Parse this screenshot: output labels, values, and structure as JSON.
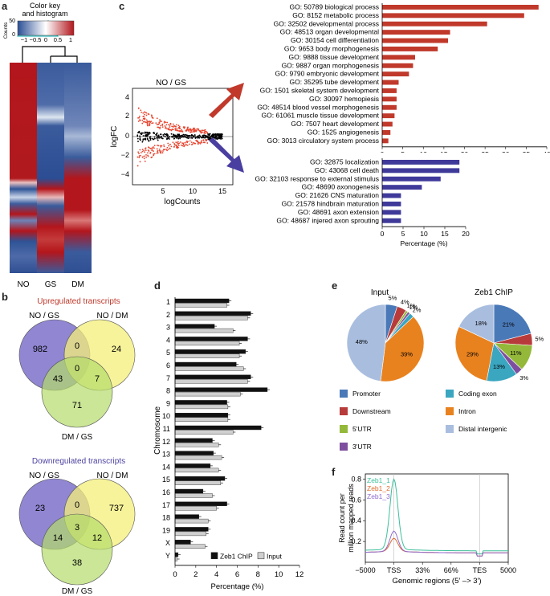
{
  "panel_labels": {
    "a": "a",
    "b": "b",
    "c": "c",
    "d": "d",
    "e": "e",
    "f": "f"
  },
  "heatmap": {
    "color_key_title": "Color key",
    "color_key_subtitle": "and histogram",
    "counts_label": "Counts",
    "counts_ticks": [
      "50",
      "0"
    ],
    "key_ticks": [
      "−1",
      "−0.5",
      "0",
      "0.5",
      "1"
    ],
    "columns": [
      "NO",
      "GS",
      "DM"
    ]
  },
  "venn_up": {
    "title": "Upregulated transcripts",
    "title_color": "#c0392b",
    "set_labels": [
      "NO / GS",
      "NO / DM",
      "DM / GS"
    ],
    "values": {
      "a_only": "982",
      "b_only": "24",
      "c_only": "71",
      "ab": "0",
      "ac": "43",
      "bc": "7",
      "abc": "0"
    }
  },
  "venn_down": {
    "title": "Downregulated transcripts",
    "title_color": "#4a3fa0",
    "set_labels": [
      "NO / GS",
      "NO / DM",
      "DM / GS"
    ],
    "values": {
      "a_only": "23",
      "b_only": "737",
      "c_only": "38",
      "ab": "0",
      "ac": "14",
      "bc": "12",
      "abc": "3"
    }
  },
  "ma_plot": {
    "title": "NO / GS",
    "xlabel": "logCounts",
    "ylabel": "logFC",
    "xticks": [
      "5",
      "10",
      "15"
    ],
    "yticks": [
      "4",
      "2",
      "0",
      "−2",
      "−4"
    ]
  },
  "chart_data": [
    {
      "type": "bar",
      "orientation": "horizontal",
      "id": "go_up",
      "color": "#c0392b",
      "categories": [
        "GO: 50789 biological process",
        "GO: 8152 metabolic process",
        "GO: 32502 developmental process",
        "GO: 48513 organ developmental",
        "GO: 30154 cell differentiation",
        "GO: 9653 body morphogenesis",
        "GO: 9888 tissue development",
        "GO: 9887 organ morphogenesis",
        "GO: 9790 embryonic development",
        "GO: 35295 tube development",
        "GO: 1501 skeletal system development",
        "GO: 30097 hemopiesis",
        "GO: 48514 blood vessel morphogenesis",
        "GO: 61061 muscle tissue development",
        "GO: 7507 heart development",
        "GO: 1525 angiogenesis",
        "GO: 3013 circulatory system process"
      ],
      "values": [
        38,
        34.5,
        25.5,
        16.5,
        16,
        13.5,
        8,
        7.5,
        6.5,
        4,
        3.5,
        3.5,
        3.5,
        3,
        2.5,
        2,
        1.5
      ],
      "xlabel": "Percentage (%)",
      "xlim": [
        0,
        40
      ],
      "xticks": [
        "0",
        "5",
        "10",
        "15",
        "20",
        "25",
        "30",
        "35",
        "40"
      ]
    },
    {
      "type": "bar",
      "orientation": "horizontal",
      "id": "go_down",
      "color": "#3f3a9a",
      "categories": [
        "GO: 32875 localization",
        "GO: 43068 cell death",
        "GO: 32103 response to external stimulus",
        "GO: 48690 axonogenesis",
        "GO: 21626 CNS maturation",
        "GO: 21578 hindbrain maturation",
        "GO: 48691 axon extension",
        "GO: 48687 injered axon sprouting"
      ],
      "values": [
        18.5,
        18.5,
        14,
        9.5,
        4.5,
        4.5,
        4.5,
        4.5
      ],
      "xlabel": "Percentage (%)",
      "xlim": [
        0,
        20
      ],
      "xticks": [
        "0",
        "5",
        "10",
        "15",
        "20"
      ]
    },
    {
      "type": "bar",
      "orientation": "horizontal",
      "id": "chromosome",
      "categories": [
        "1",
        "2",
        "3",
        "4",
        "5",
        "6",
        "7",
        "8",
        "9",
        "10",
        "11",
        "12",
        "13",
        "14",
        "15",
        "16",
        "17",
        "18",
        "19",
        "X",
        "Y"
      ],
      "series": [
        {
          "name": "Zeb1 ChIP",
          "color": "#111111",
          "values": [
            5.2,
            7.3,
            3.8,
            7.0,
            6.8,
            5.9,
            7.3,
            8.9,
            5.0,
            5.1,
            8.3,
            3.6,
            3.7,
            3.4,
            4.8,
            2.7,
            5.0,
            2.3,
            3.2,
            1.5,
            0.3
          ]
        },
        {
          "name": "Input",
          "color": "#d0d0d0",
          "values": [
            5.0,
            7.0,
            5.6,
            6.2,
            6.2,
            6.6,
            7.0,
            6.3,
            5.1,
            5.1,
            5.6,
            4.2,
            4.5,
            4.2,
            4.4,
            3.6,
            4.0,
            3.2,
            3.0,
            2.9,
            0.2
          ]
        }
      ],
      "ylabel": "Chromosome",
      "xlabel": "Percentage (%)",
      "xlim": [
        0,
        12
      ],
      "xticks": [
        "0",
        "2",
        "4",
        "6",
        "8",
        "10",
        "12"
      ]
    },
    {
      "type": "pie",
      "id": "pie_input",
      "title": "Input",
      "slices": [
        {
          "name": "Promoter",
          "value": 5,
          "color": "#4a79b8",
          "label": "5%"
        },
        {
          "name": "Downstream",
          "value": 4,
          "color": "#b83b3b",
          "label": "4%"
        },
        {
          "name": "5'UTR",
          "value": 1,
          "color": "#94b83a",
          "label": "1%"
        },
        {
          "name": "3'UTR",
          "value": 1,
          "color": "#7d4f9e",
          "label": "1%"
        },
        {
          "name": "Coding exon",
          "value": 2,
          "color": "#3aa6c0",
          "label": "2%"
        },
        {
          "name": "Intron",
          "value": 39,
          "color": "#e8821f",
          "label": "39%"
        },
        {
          "name": "Distal intergenic",
          "value": 48,
          "color": "#a9bedf",
          "label": "48%"
        }
      ]
    },
    {
      "type": "pie",
      "id": "pie_zeb1",
      "title": "Zeb1 ChIP",
      "slices": [
        {
          "name": "Promoter",
          "value": 21,
          "color": "#4a79b8",
          "label": "21%"
        },
        {
          "name": "Downstream",
          "value": 5,
          "color": "#b83b3b",
          "label": "5%"
        },
        {
          "name": "5'UTR",
          "value": 11,
          "color": "#94b83a",
          "label": "11%"
        },
        {
          "name": "3'UTR",
          "value": 3,
          "color": "#7d4f9e",
          "label": "3%"
        },
        {
          "name": "Coding exon",
          "value": 13,
          "color": "#3aa6c0",
          "label": "13%"
        },
        {
          "name": "Intron",
          "value": 29,
          "color": "#e8821f",
          "label": "29%"
        },
        {
          "name": "Distal intergenic",
          "value": 18,
          "color": "#a9bedf",
          "label": "18%"
        }
      ]
    },
    {
      "type": "line",
      "id": "profile",
      "ylabel": "Read count per million mapped reads",
      "xlabel": "Genomic regions (5′ –> 3′)",
      "xticks": [
        "−5000",
        "TSS",
        "33%",
        "66%",
        "TES",
        "5000"
      ],
      "yticks": [
        "0.2",
        "0.4",
        "0.6",
        "0.8"
      ],
      "ylim": [
        0,
        0.85
      ],
      "series": [
        {
          "name": "Zeb1_1",
          "color": "#3cbf9a",
          "peak": 0.78,
          "base": 0.11
        },
        {
          "name": "Zeb1_2",
          "color": "#e06a2c",
          "peak": 0.21,
          "base": 0.09
        },
        {
          "name": "Zeb1_3",
          "color": "#8e6bd0",
          "peak": 0.28,
          "base": 0.09
        }
      ]
    }
  ]
}
